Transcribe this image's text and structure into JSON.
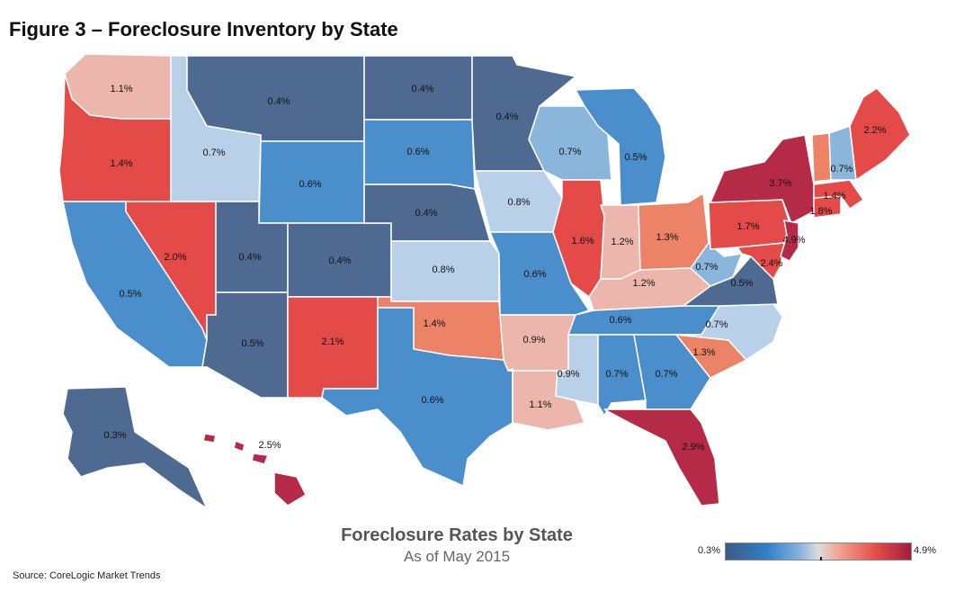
{
  "title": "Figure 3 – Foreclosure Inventory by State",
  "map_title": "Foreclosure Rates by State",
  "map_subtitle": "As of May 2015",
  "source": "Source: CoreLogic Market Trends",
  "legend": {
    "min_label": "0.3%",
    "max_label": "4.9%"
  },
  "colors": {
    "darkblue": "#4e6a91",
    "blue": "#4a8fcb",
    "lightblue": "#8ab6dc",
    "palest_blue": "#b9d1e8",
    "pink": "#edb6ad",
    "salmon": "#ec8366",
    "red": "#e34a48",
    "darkred": "#b52a47"
  },
  "states": [
    {
      "name": "WA",
      "rate": "1.1%"
    },
    {
      "name": "OR",
      "rate": "1.4%"
    },
    {
      "name": "CA",
      "rate": "0.5%"
    },
    {
      "name": "NV",
      "rate": "2.0%"
    },
    {
      "name": "ID",
      "rate": "0.7%"
    },
    {
      "name": "MT",
      "rate": "0.4%"
    },
    {
      "name": "WY",
      "rate": "0.6%"
    },
    {
      "name": "UT",
      "rate": "0.4%"
    },
    {
      "name": "AZ",
      "rate": "0.5%"
    },
    {
      "name": "CO",
      "rate": "0.4%"
    },
    {
      "name": "NM",
      "rate": "2.1%"
    },
    {
      "name": "ND",
      "rate": "0.4%"
    },
    {
      "name": "SD",
      "rate": "0.6%"
    },
    {
      "name": "NE",
      "rate": "0.4%"
    },
    {
      "name": "KS",
      "rate": "0.8%"
    },
    {
      "name": "OK",
      "rate": "1.4%"
    },
    {
      "name": "TX",
      "rate": "0.6%"
    },
    {
      "name": "MN",
      "rate": "0.4%"
    },
    {
      "name": "IA",
      "rate": "0.8%"
    },
    {
      "name": "MO",
      "rate": "0.6%"
    },
    {
      "name": "AR",
      "rate": "0.9%"
    },
    {
      "name": "LA",
      "rate": "1.1%"
    },
    {
      "name": "WI",
      "rate": "0.7%"
    },
    {
      "name": "IL",
      "rate": "1.6%"
    },
    {
      "name": "MI",
      "rate": "0.5%"
    },
    {
      "name": "IN",
      "rate": "1.2%"
    },
    {
      "name": "OH",
      "rate": "1.3%"
    },
    {
      "name": "KY",
      "rate": "1.2%"
    },
    {
      "name": "TN",
      "rate": "0.6%"
    },
    {
      "name": "MS",
      "rate": "0.9%"
    },
    {
      "name": "AL",
      "rate": "0.7%"
    },
    {
      "name": "GA",
      "rate": "0.7%"
    },
    {
      "name": "FL",
      "rate": "2.9%"
    },
    {
      "name": "SC",
      "rate": "1.3%"
    },
    {
      "name": "NC",
      "rate": "0.7%"
    },
    {
      "name": "VA",
      "rate": "0.5%"
    },
    {
      "name": "WV",
      "rate": "0.7%"
    },
    {
      "name": "MD",
      "rate": "2.4%"
    },
    {
      "name": "PA",
      "rate": "1.7%"
    },
    {
      "name": "NY",
      "rate": "3.7%"
    },
    {
      "name": "NJ",
      "rate": "4.9%"
    },
    {
      "name": "CT",
      "rate": "1.8%"
    },
    {
      "name": "MA",
      "rate": "1.4%"
    },
    {
      "name": "NH",
      "rate": "0.7%"
    },
    {
      "name": "ME",
      "rate": "2.2%"
    },
    {
      "name": "AK",
      "rate": "0.3%"
    },
    {
      "name": "HI",
      "rate": "2.5%"
    }
  ]
}
